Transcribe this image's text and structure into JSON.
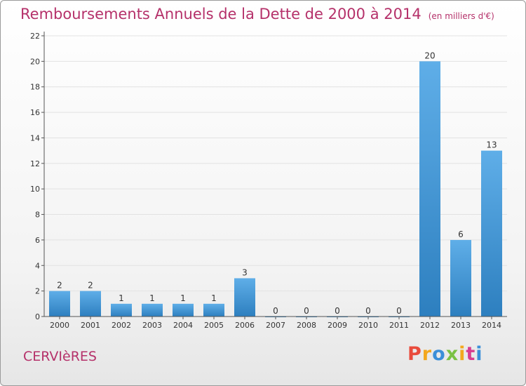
{
  "header": {
    "title": "Remboursements Annuels de la Dette de 2000 à 2014",
    "unit": "(en milliers d'€)"
  },
  "footer": {
    "commune": "CERVIèRES",
    "logo_text": "Proxiti",
    "logo_colors": [
      "#e94b3c",
      "#f3a81e",
      "#3b8fd8",
      "#7ac143",
      "#f3a81e",
      "#d83c8f",
      "#3b8fd8"
    ]
  },
  "colors": {
    "title": "#b5316a",
    "bar_light": "#5faee8",
    "bar_dark": "#2d7fbf",
    "axis": "#555555",
    "grid": "#e2e2e2"
  },
  "chart_data": {
    "type": "bar",
    "categories": [
      "2000",
      "2001",
      "2002",
      "2003",
      "2004",
      "2005",
      "2006",
      "2007",
      "2008",
      "2009",
      "2010",
      "2011",
      "2012",
      "2013",
      "2014"
    ],
    "values": [
      2,
      2,
      1,
      1,
      1,
      1,
      3,
      0,
      0,
      0,
      0,
      0,
      20,
      6,
      13
    ],
    "data_labels": [
      "2",
      "2",
      "1",
      "1",
      "1",
      "1",
      "3",
      "0",
      "0",
      "0",
      "0",
      "0",
      "20",
      "6",
      "13"
    ],
    "ylim": [
      0,
      22
    ],
    "yticks": [
      0,
      2,
      4,
      6,
      8,
      10,
      12,
      14,
      16,
      18,
      20,
      22
    ],
    "grid": true,
    "legend": false,
    "xlabel": "",
    "ylabel": ""
  }
}
